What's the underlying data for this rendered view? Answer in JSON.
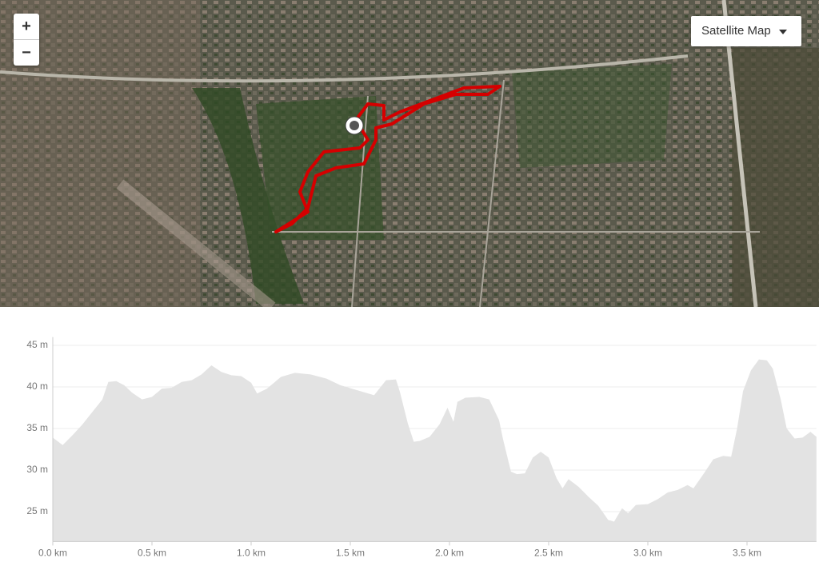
{
  "map": {
    "zoom_in": "+",
    "zoom_out": "−",
    "layer_button": "Satellite Map"
  },
  "chart_data": {
    "type": "area",
    "color": "#e3e3e3",
    "x": [
      0.0,
      0.05,
      0.1,
      0.15,
      0.2,
      0.25,
      0.28,
      0.32,
      0.36,
      0.4,
      0.45,
      0.5,
      0.55,
      0.6,
      0.65,
      0.7,
      0.75,
      0.8,
      0.85,
      0.9,
      0.95,
      1.0,
      1.03,
      1.08,
      1.15,
      1.22,
      1.3,
      1.38,
      1.45,
      1.55,
      1.62,
      1.68,
      1.73,
      1.75,
      1.79,
      1.82,
      1.85,
      1.9,
      1.95,
      1.99,
      2.02,
      2.04,
      2.08,
      2.15,
      2.2,
      2.25,
      2.27,
      2.31,
      2.34,
      2.38,
      2.42,
      2.46,
      2.5,
      2.54,
      2.57,
      2.6,
      2.65,
      2.7,
      2.75,
      2.8,
      2.83,
      2.87,
      2.9,
      2.94,
      3.0,
      3.05,
      3.1,
      3.15,
      3.2,
      3.23,
      3.28,
      3.33,
      3.38,
      3.42,
      3.45,
      3.48,
      3.52,
      3.56,
      3.6,
      3.63,
      3.67,
      3.7,
      3.74,
      3.78,
      3.82,
      3.85
    ],
    "values": [
      33.9,
      33.0,
      34.2,
      35.5,
      37.0,
      38.5,
      40.6,
      40.7,
      40.2,
      39.3,
      38.5,
      38.8,
      39.8,
      39.9,
      40.6,
      40.8,
      41.5,
      42.6,
      41.8,
      41.4,
      41.3,
      40.5,
      39.2,
      39.8,
      41.2,
      41.7,
      41.5,
      41.0,
      40.2,
      39.5,
      39.0,
      40.8,
      40.9,
      39.4,
      35.6,
      33.4,
      33.5,
      34.0,
      35.5,
      37.5,
      35.8,
      38.2,
      38.7,
      38.8,
      38.5,
      36.0,
      33.7,
      29.8,
      29.5,
      29.6,
      31.5,
      32.2,
      31.5,
      29.0,
      27.8,
      28.9,
      28.0,
      26.8,
      25.7,
      24.0,
      23.8,
      25.4,
      24.8,
      25.8,
      25.9,
      26.5,
      27.3,
      27.6,
      28.2,
      27.8,
      29.5,
      31.3,
      31.7,
      31.6,
      35.0,
      39.5,
      42.0,
      43.3,
      43.2,
      42.2,
      38.5,
      35.0,
      33.8,
      33.9,
      34.6,
      34.0
    ],
    "xlim": [
      0,
      3.85
    ],
    "ylim": [
      21.4,
      46
    ],
    "xticks": [
      {
        "value": 0,
        "label": "0.0 km"
      },
      {
        "value": 0.5,
        "label": "0.5 km"
      },
      {
        "value": 1,
        "label": "1.0 km"
      },
      {
        "value": 1.5,
        "label": "1.5 km"
      },
      {
        "value": 2,
        "label": "2.0 km"
      },
      {
        "value": 2.5,
        "label": "2.5 km"
      },
      {
        "value": 3,
        "label": "3.0 km"
      },
      {
        "value": 3.5,
        "label": "3.5 km"
      }
    ],
    "yticks": [
      {
        "value": 25,
        "label": "25 m"
      },
      {
        "value": 30,
        "label": "30 m"
      },
      {
        "value": 35,
        "label": "35 m"
      },
      {
        "value": 40,
        "label": "40 m"
      },
      {
        "value": 45,
        "label": "45 m"
      }
    ],
    "grid": true
  }
}
